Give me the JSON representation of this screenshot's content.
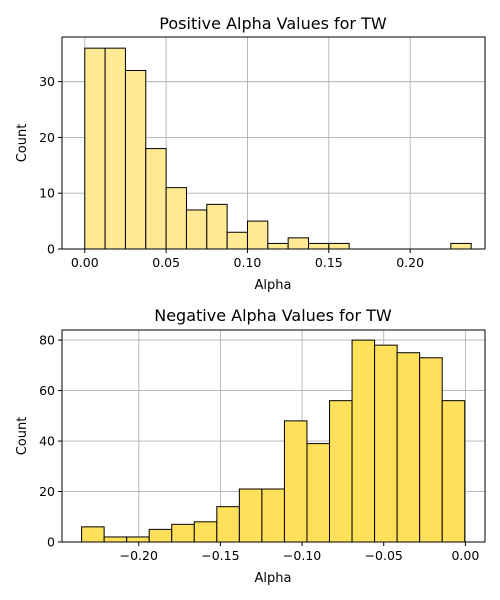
{
  "chart_data": [
    {
      "type": "bar",
      "title": "Positive Alpha Values for TW",
      "xlabel": "Alpha",
      "ylabel": "Count",
      "xlim": [
        -0.014,
        0.246
      ],
      "ylim": [
        0,
        38
      ],
      "xticks": [
        0.0,
        0.05,
        0.1,
        0.15,
        0.2
      ],
      "xtick_labels": [
        "0.00",
        "0.05",
        "0.10",
        "0.15",
        "0.20"
      ],
      "yticks": [
        0,
        10,
        20,
        30
      ],
      "grid": true,
      "bar_color": "#ffe993",
      "bins": [
        {
          "x0": 0.0,
          "x1": 0.0125,
          "count": 36
        },
        {
          "x0": 0.0125,
          "x1": 0.025,
          "count": 36
        },
        {
          "x0": 0.025,
          "x1": 0.0375,
          "count": 32
        },
        {
          "x0": 0.0375,
          "x1": 0.05,
          "count": 18
        },
        {
          "x0": 0.05,
          "x1": 0.0625,
          "count": 11
        },
        {
          "x0": 0.0625,
          "x1": 0.075,
          "count": 7
        },
        {
          "x0": 0.075,
          "x1": 0.0875,
          "count": 8
        },
        {
          "x0": 0.0875,
          "x1": 0.1,
          "count": 3
        },
        {
          "x0": 0.1,
          "x1": 0.1125,
          "count": 5
        },
        {
          "x0": 0.1125,
          "x1": 0.125,
          "count": 1
        },
        {
          "x0": 0.125,
          "x1": 0.1375,
          "count": 2
        },
        {
          "x0": 0.1375,
          "x1": 0.15,
          "count": 1
        },
        {
          "x0": 0.15,
          "x1": 0.1625,
          "count": 1
        },
        {
          "x0": 0.1625,
          "x1": 0.175,
          "count": 0
        },
        {
          "x0": 0.175,
          "x1": 0.1875,
          "count": 0
        },
        {
          "x0": 0.1875,
          "x1": 0.2,
          "count": 0
        },
        {
          "x0": 0.2,
          "x1": 0.2125,
          "count": 0
        },
        {
          "x0": 0.2125,
          "x1": 0.225,
          "count": 0
        },
        {
          "x0": 0.225,
          "x1": 0.2375,
          "count": 1
        }
      ]
    },
    {
      "type": "bar",
      "title": "Negative Alpha Values for TW",
      "xlabel": "Alpha",
      "ylabel": "Count",
      "xlim": [
        -0.247,
        0.012
      ],
      "ylim": [
        0,
        84
      ],
      "xticks": [
        -0.2,
        -0.15,
        -0.1,
        -0.05,
        0.0
      ],
      "xtick_labels": [
        "−0.20",
        "−0.15",
        "−0.10",
        "−0.05",
        "0.00"
      ],
      "yticks": [
        0,
        20,
        40,
        60,
        80
      ],
      "grid": true,
      "bar_color": "#ffe05b",
      "bins": [
        {
          "x0": -0.235,
          "x1": -0.2212,
          "count": 6
        },
        {
          "x0": -0.2212,
          "x1": -0.2074,
          "count": 2
        },
        {
          "x0": -0.2074,
          "x1": -0.1936,
          "count": 2
        },
        {
          "x0": -0.1936,
          "x1": -0.1798,
          "count": 5
        },
        {
          "x0": -0.1798,
          "x1": -0.166,
          "count": 7
        },
        {
          "x0": -0.166,
          "x1": -0.1522,
          "count": 8
        },
        {
          "x0": -0.1522,
          "x1": -0.1384,
          "count": 14
        },
        {
          "x0": -0.1384,
          "x1": -0.1246,
          "count": 21
        },
        {
          "x0": -0.1246,
          "x1": -0.1108,
          "count": 21
        },
        {
          "x0": -0.1108,
          "x1": -0.097,
          "count": 48
        },
        {
          "x0": -0.097,
          "x1": -0.0832,
          "count": 39
        },
        {
          "x0": -0.0832,
          "x1": -0.0694,
          "count": 56
        },
        {
          "x0": -0.0694,
          "x1": -0.0556,
          "count": 80
        },
        {
          "x0": -0.0556,
          "x1": -0.0418,
          "count": 78
        },
        {
          "x0": -0.0418,
          "x1": -0.028,
          "count": 75
        },
        {
          "x0": -0.028,
          "x1": -0.0142,
          "count": 73
        },
        {
          "x0": -0.0142,
          "x1": -0.0004,
          "count": 56
        }
      ]
    }
  ]
}
